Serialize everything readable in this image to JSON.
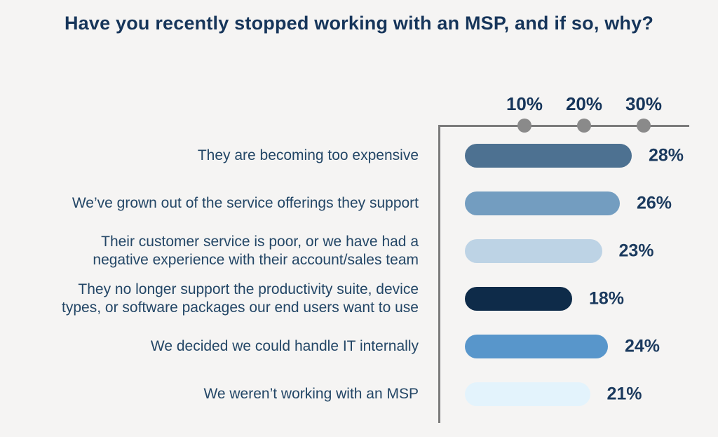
{
  "title": "Have you recently stopped working with an MSP, and if so, why?",
  "chart_data": {
    "type": "bar",
    "orientation": "horizontal",
    "title": "Have you recently stopped working with an MSP, and if so, why?",
    "categories": [
      "They are becoming too expensive",
      "We’ve grown out of the service offerings they support",
      "Their customer service is poor, or we have had a negative experience with their account/sales team",
      "They no longer support the productivity suite, device types, or software packages our end users want to use",
      "We decided we could handle IT internally",
      "We weren’t working with an MSP"
    ],
    "category_lines": [
      [
        "They are becoming too expensive"
      ],
      [
        "We’ve grown out of the service offerings they support"
      ],
      [
        "Their customer service is poor, or we have had a",
        "negative experience with their account/sales team"
      ],
      [
        "They no longer support the productivity suite, device",
        "types, or software packages our end users want to use"
      ],
      [
        "We decided we could handle IT internally"
      ],
      [
        "We weren’t working with an MSP"
      ]
    ],
    "values": [
      28,
      26,
      23,
      18,
      24,
      21
    ],
    "value_labels": [
      "28%",
      "26%",
      "23%",
      "18%",
      "24%",
      "21%"
    ],
    "bar_colors": [
      "#4d7191",
      "#739dc0",
      "#bdd3e5",
      "#0e2b49",
      "#5896cb",
      "#e3f3fc"
    ],
    "x_ticks": [
      {
        "value": 10,
        "label": "10%"
      },
      {
        "value": 20,
        "label": "20%"
      },
      {
        "value": 30,
        "label": "30%"
      }
    ],
    "xlim": [
      0,
      37
    ],
    "xlabel": "",
    "ylabel": "",
    "grid": false,
    "legend": false,
    "axis_color": "#7b7b7b",
    "dot_color": "#8a8a8a",
    "title_color": "#16355a",
    "label_color": "#234666",
    "value_color": "#1b3a5e",
    "background_color": "#f5f4f3"
  }
}
